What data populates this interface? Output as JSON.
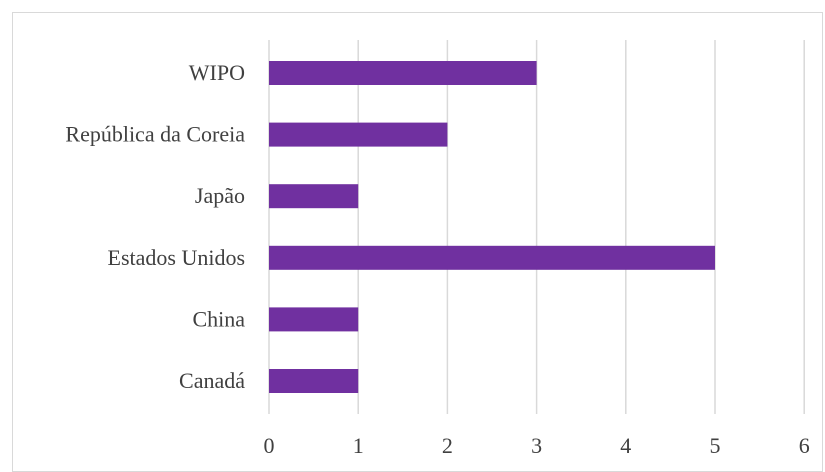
{
  "chart_data": {
    "type": "bar",
    "orientation": "horizontal",
    "categories": [
      "WIPO",
      "República da Coreia",
      "Japão",
      "Estados Unidos",
      "China",
      "Canadá"
    ],
    "values": [
      3,
      2,
      1,
      5,
      1,
      1
    ],
    "xlim": [
      0,
      6
    ],
    "xticks": [
      "0",
      "1",
      "2",
      "3",
      "4",
      "5",
      "6"
    ],
    "grid": "vertical",
    "legend": "none",
    "bar_color": "#7030a0",
    "grid_color": "#d9d9d9",
    "text_color": "#404040",
    "title": "",
    "xlabel": "",
    "ylabel": ""
  }
}
